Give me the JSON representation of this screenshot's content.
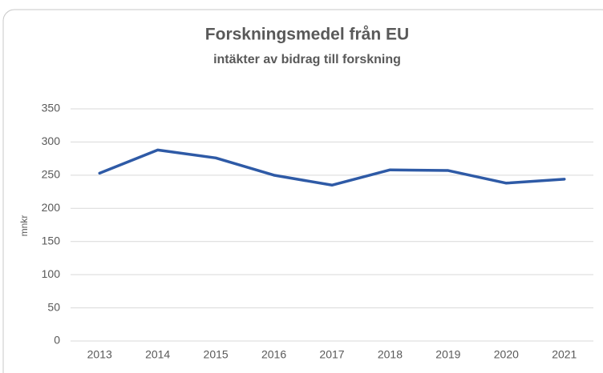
{
  "chart_data": {
    "type": "line",
    "title": "Forskningsmedel från EU",
    "subtitle": "intäkter av bidrag till forskning",
    "y_label": "mnkr",
    "categories": [
      "2013",
      "2014",
      "2015",
      "2016",
      "2017",
      "2018",
      "2019",
      "2020",
      "2021"
    ],
    "series": [
      {
        "name": "Forskningsmedel",
        "color": "#2e5aa6",
        "values": [
          253,
          288,
          276,
          250,
          235,
          258,
          257,
          238,
          244
        ]
      }
    ],
    "ylim": [
      0,
      350
    ],
    "yticks": [
      0,
      50,
      100,
      150,
      200,
      250,
      300,
      350
    ],
    "grid": true
  }
}
